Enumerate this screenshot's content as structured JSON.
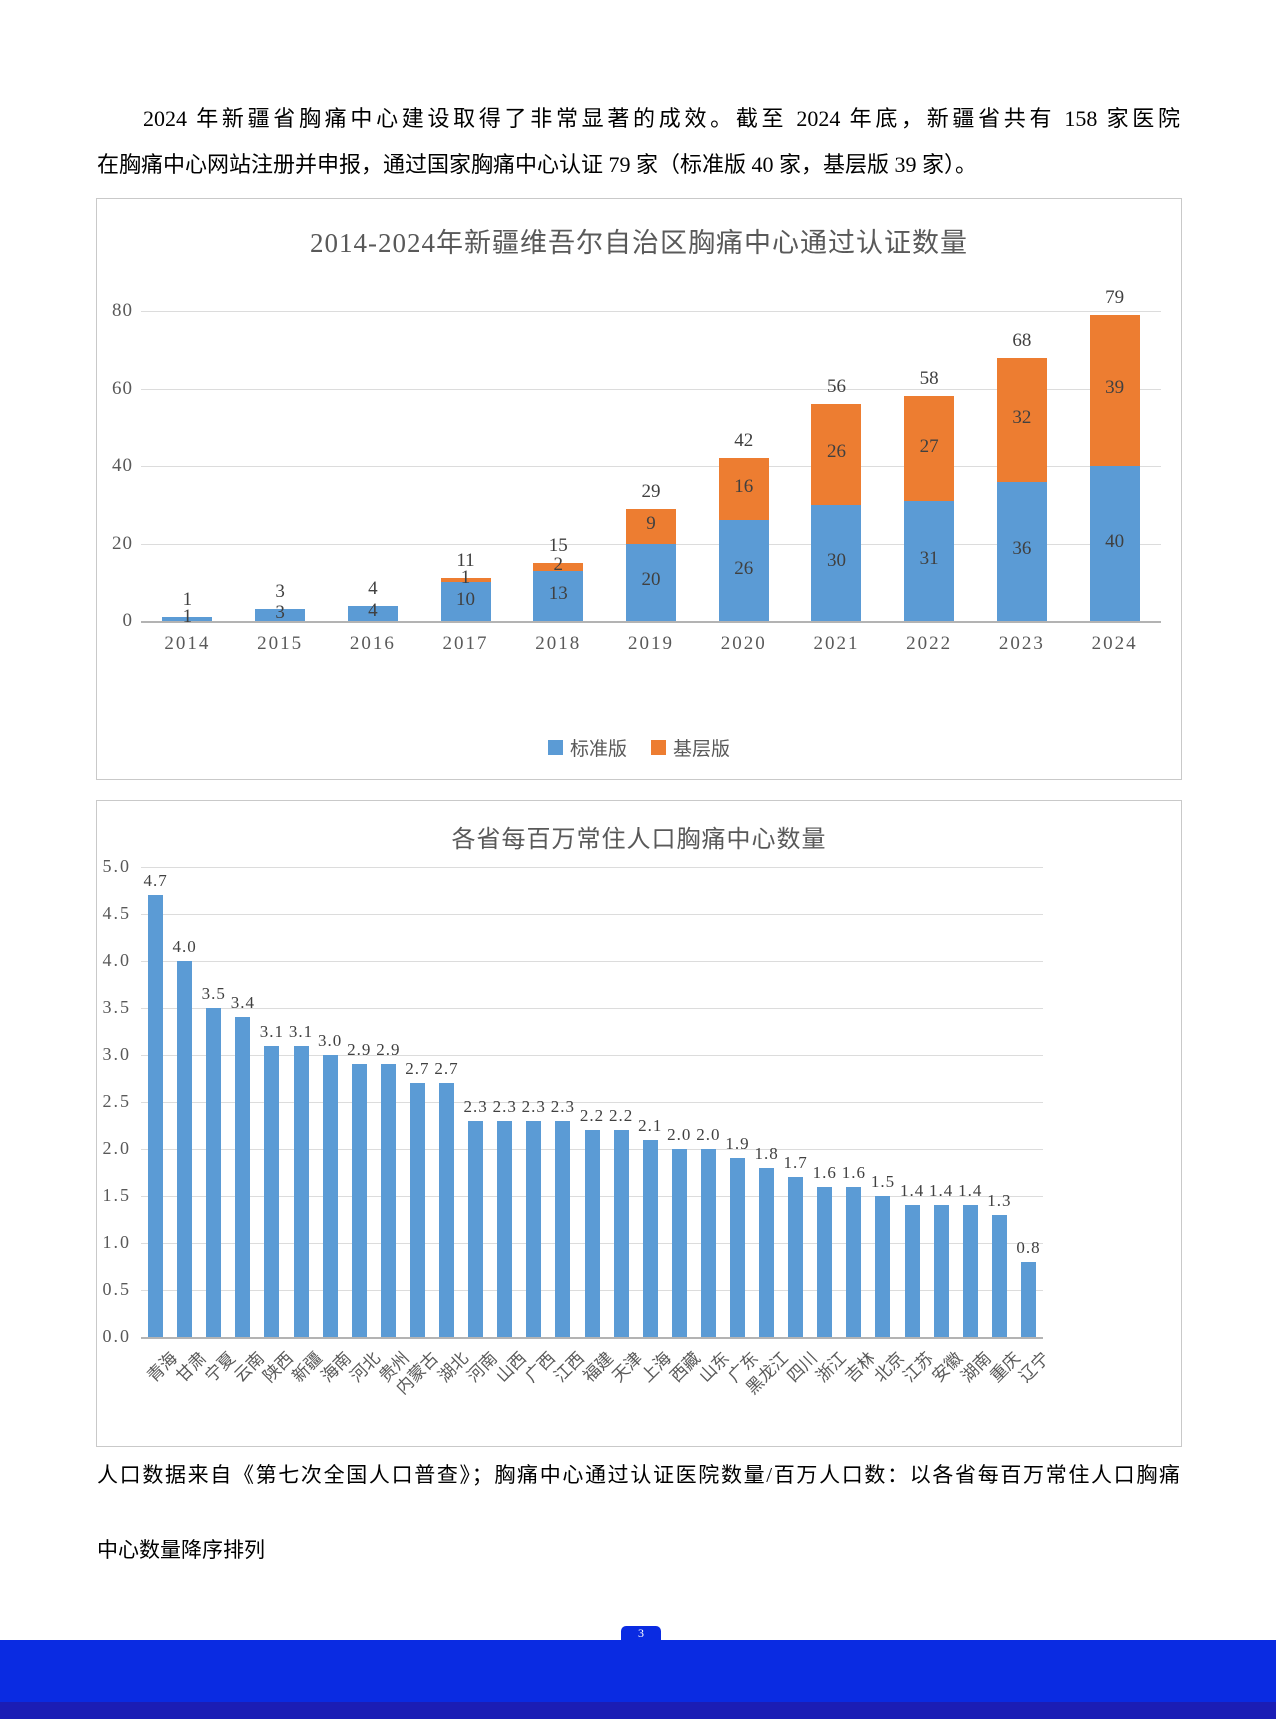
{
  "page": {
    "intro_lines": [
      "2024 年新疆省胸痛中心建设取得了非常显著的成效。截至 2024 年底，新疆省共有 158 家医院",
      "在胸痛中心网站注册并申报，通过国家胸痛中心认证 79 家（标准版 40 家，基层版 39 家）。"
    ],
    "note_lines": [
      "人口数据来自《第七次全国人口普查》；胸痛中心通过认证医院数量/百万人口数：以各省每百万常住人口胸痛",
      "中心数量降序排列"
    ],
    "page_number": "3"
  },
  "colors": {
    "bar_blue": "#5B9BD5",
    "bar_orange": "#ED7D31",
    "footer_blue": "#0A2BE2",
    "footer_dark": "#1B1DB5",
    "axis_text": "#595959",
    "label_text": "#404040"
  },
  "chart_data": [
    {
      "type": "bar",
      "stacked": true,
      "title": "2014-2024年新疆维吾尔自治区胸痛中心通过认证数量",
      "categories": [
        "2014",
        "2015",
        "2016",
        "2017",
        "2018",
        "2019",
        "2020",
        "2021",
        "2022",
        "2023",
        "2024"
      ],
      "series": [
        {
          "name": "标准版",
          "color": "#5B9BD5",
          "values": [
            1,
            3,
            4,
            10,
            13,
            20,
            26,
            30,
            31,
            36,
            40
          ]
        },
        {
          "name": "基层版",
          "color": "#ED7D31",
          "values": [
            0,
            0,
            0,
            1,
            2,
            9,
            16,
            26,
            27,
            32,
            39
          ]
        }
      ],
      "totals": [
        1,
        3,
        4,
        11,
        15,
        29,
        42,
        56,
        58,
        68,
        79
      ],
      "xlabel": "",
      "ylabel": "",
      "ylim": [
        0,
        80
      ],
      "ytick_step": 20,
      "grid": true,
      "legend_position": "bottom"
    },
    {
      "type": "bar",
      "stacked": false,
      "title": "各省每百万常住人口胸痛中心数量",
      "categories": [
        "青海",
        "甘肃",
        "宁夏",
        "云南",
        "陕西",
        "新疆",
        "海南",
        "河北",
        "贵州",
        "内蒙古",
        "湖北",
        "河南",
        "山西",
        "广西",
        "江西",
        "福建",
        "天津",
        "上海",
        "西藏",
        "山东",
        "广东",
        "黑龙江",
        "四川",
        "浙江",
        "吉林",
        "北京",
        "江苏",
        "安徽",
        "湖南",
        "重庆",
        "辽宁"
      ],
      "values": [
        4.7,
        4.0,
        3.5,
        3.4,
        3.1,
        3.1,
        3.0,
        2.9,
        2.9,
        2.7,
        2.7,
        2.3,
        2.3,
        2.3,
        2.3,
        2.2,
        2.2,
        2.1,
        2.0,
        2.0,
        1.9,
        1.8,
        1.7,
        1.6,
        1.6,
        1.5,
        1.4,
        1.4,
        1.4,
        1.3,
        0.8
      ],
      "bar_color": "#5B9BD5",
      "xlabel": "",
      "ylabel": "",
      "ylim": [
        0,
        5
      ],
      "ytick_step": 0.5,
      "grid": true,
      "legend_position": "none"
    }
  ]
}
